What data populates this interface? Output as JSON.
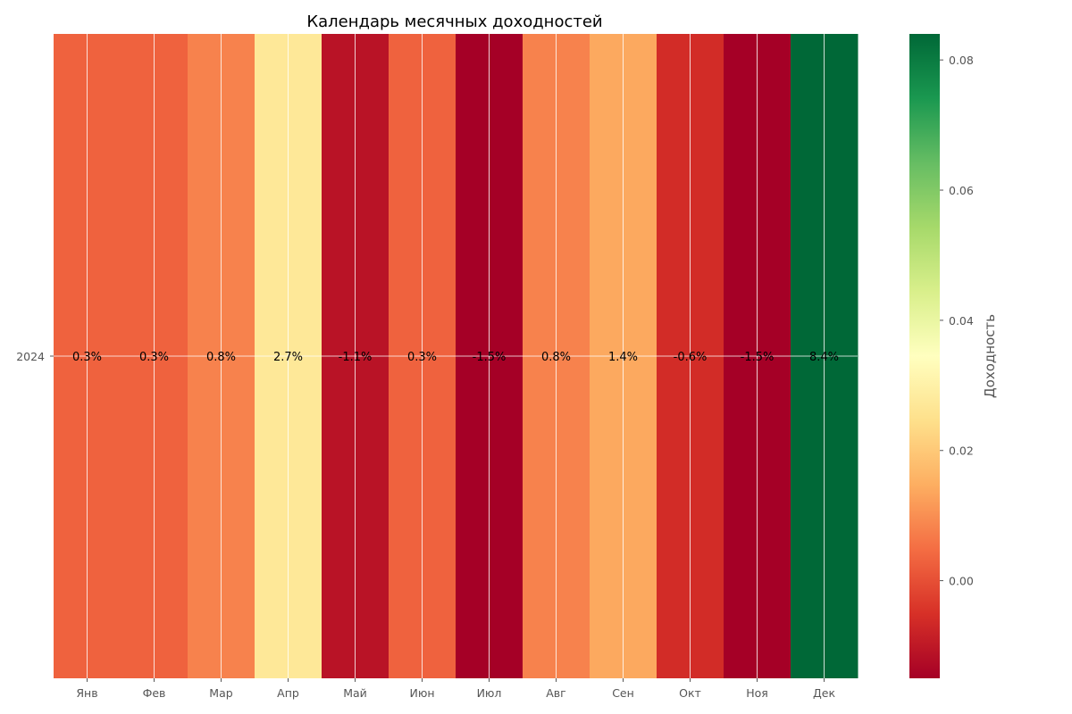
{
  "chart_data": {
    "type": "heatmap",
    "title": "Календарь месячных доходностей",
    "x_categories": [
      "Янв",
      "Фев",
      "Мар",
      "Апр",
      "Май",
      "Июн",
      "Июл",
      "Авг",
      "Сен",
      "Окт",
      "Ноя",
      "Дек"
    ],
    "y_categories": [
      "2024"
    ],
    "values": [
      [
        0.003,
        0.003,
        0.008,
        0.027,
        -0.011,
        0.003,
        -0.015,
        0.008,
        0.014,
        -0.006,
        -0.015,
        0.084
      ]
    ],
    "cell_labels": [
      [
        "0.3%",
        "0.3%",
        "0.8%",
        "2.7%",
        "-1.1%",
        "0.3%",
        "-1.5%",
        "0.8%",
        "1.4%",
        "-0.6%",
        "-1.5%",
        "8.4%"
      ]
    ],
    "colormap": "RdYlGn",
    "color_range": [
      -0.015,
      0.084
    ],
    "colorbar": {
      "label": "Доходность",
      "ticks": [
        0.0,
        0.02,
        0.04,
        0.06,
        0.08
      ],
      "tick_labels": [
        "0.00",
        "0.02",
        "0.04",
        "0.06",
        "0.08"
      ]
    },
    "grid": true
  }
}
